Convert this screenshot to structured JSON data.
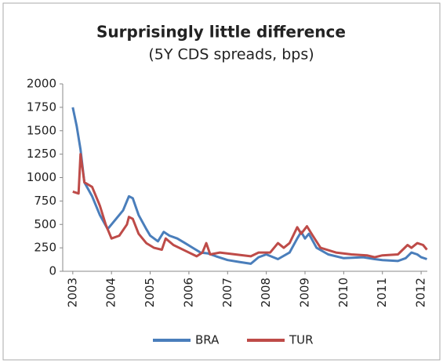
{
  "chart_data": {
    "type": "line",
    "title": "Surprisingly little difference",
    "subtitle": "(5Y CDS spreads, bps)",
    "xlim": [
      2002.74,
      2012.16
    ],
    "xticks": [
      2003,
      2004,
      2005,
      2006,
      2007,
      2008,
      2009,
      2010,
      2011,
      2012
    ],
    "ylim": [
      0,
      2000
    ],
    "yticks": [
      0,
      250,
      500,
      750,
      1000,
      1250,
      1500,
      1750,
      2000
    ],
    "legend": "bottom",
    "series": [
      {
        "name": "BRA",
        "color": "#4a7ebb",
        "x": [
          2003.0,
          2003.1,
          2003.2,
          2003.3,
          2003.5,
          2003.7,
          2003.9,
          2004.1,
          2004.3,
          2004.45,
          2004.55,
          2004.7,
          2004.9,
          2005.0,
          2005.2,
          2005.35,
          2005.5,
          2005.7,
          2005.9,
          2006.1,
          2006.3,
          2006.5,
          2006.7,
          2007.0,
          2007.3,
          2007.6,
          2007.8,
          2008.0,
          2008.3,
          2008.6,
          2008.8,
          2008.9,
          2009.0,
          2009.1,
          2009.3,
          2009.6,
          2010.0,
          2010.5,
          2010.8,
          2011.0,
          2011.4,
          2011.6,
          2011.75,
          2011.9,
          2012.0,
          2012.15
        ],
        "values": [
          1750,
          1550,
          1300,
          950,
          800,
          600,
          450,
          550,
          650,
          800,
          780,
          600,
          450,
          380,
          320,
          420,
          380,
          350,
          300,
          250,
          200,
          190,
          160,
          120,
          100,
          80,
          150,
          180,
          130,
          200,
          350,
          420,
          350,
          400,
          250,
          180,
          140,
          150,
          130,
          120,
          110,
          140,
          200,
          180,
          150,
          130
        ]
      },
      {
        "name": "TUR",
        "color": "#be4b48",
        "x": [
          2003.0,
          2003.15,
          2003.2,
          2003.3,
          2003.5,
          2003.7,
          2003.85,
          2004.0,
          2004.2,
          2004.4,
          2004.45,
          2004.55,
          2004.7,
          2004.9,
          2005.1,
          2005.3,
          2005.4,
          2005.6,
          2005.9,
          2006.2,
          2006.35,
          2006.45,
          2006.55,
          2006.8,
          2007.2,
          2007.6,
          2007.8,
          2008.1,
          2008.3,
          2008.45,
          2008.6,
          2008.8,
          2008.9,
          2009.05,
          2009.2,
          2009.4,
          2009.8,
          2010.2,
          2010.6,
          2010.8,
          2011.0,
          2011.4,
          2011.65,
          2011.75,
          2011.9,
          2012.05,
          2012.15
        ],
        "values": [
          850,
          830,
          1250,
          950,
          900,
          700,
          500,
          350,
          380,
          500,
          580,
          560,
          400,
          300,
          250,
          230,
          350,
          280,
          220,
          160,
          200,
          300,
          180,
          200,
          180,
          160,
          200,
          200,
          300,
          250,
          300,
          470,
          400,
          480,
          380,
          250,
          200,
          180,
          170,
          150,
          170,
          180,
          280,
          250,
          300,
          280,
          230
        ]
      }
    ]
  }
}
